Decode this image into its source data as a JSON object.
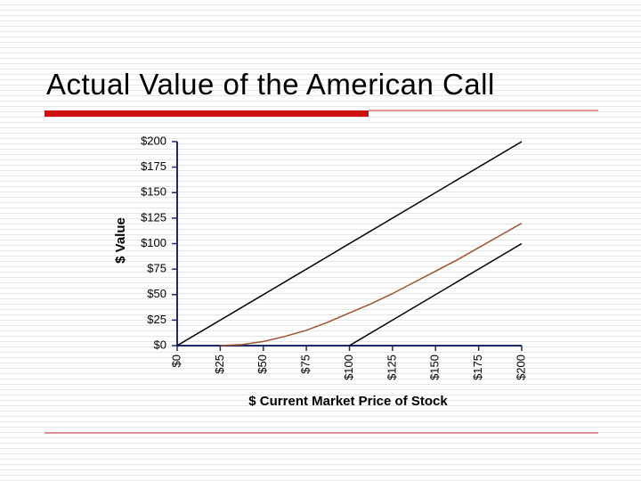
{
  "title": "Actual Value of the American Call",
  "chart_data": {
    "type": "line",
    "xlabel": "$ Current Market Price of Stock",
    "ylabel": "$ Value",
    "xlim": [
      0,
      200
    ],
    "ylim": [
      0,
      200
    ],
    "xticks": [
      {
        "value": 0,
        "label": "$0"
      },
      {
        "value": 25,
        "label": "$25"
      },
      {
        "value": 50,
        "label": "$50"
      },
      {
        "value": 75,
        "label": "$75"
      },
      {
        "value": 100,
        "label": "$100"
      },
      {
        "value": 125,
        "label": "$125"
      },
      {
        "value": 150,
        "label": "$150"
      },
      {
        "value": 175,
        "label": "$175"
      },
      {
        "value": 200,
        "label": "$200"
      }
    ],
    "yticks": [
      {
        "value": 0,
        "label": "$0"
      },
      {
        "value": 25,
        "label": "$25"
      },
      {
        "value": 50,
        "label": "$50"
      },
      {
        "value": 75,
        "label": "$75"
      },
      {
        "value": 100,
        "label": "$100"
      },
      {
        "value": 125,
        "label": "$125"
      },
      {
        "value": 150,
        "label": "$150"
      },
      {
        "value": 175,
        "label": "$175"
      },
      {
        "value": 200,
        "label": "$200"
      }
    ],
    "series": [
      {
        "color": "#000000",
        "x": [
          0,
          200
        ],
        "values": [
          0,
          200
        ]
      },
      {
        "color": "#000000",
        "x": [
          100,
          200
        ],
        "values": [
          0,
          100
        ]
      },
      {
        "color": "#a0522d",
        "x": [
          25,
          37.5,
          50,
          62.5,
          75,
          87.5,
          100,
          112.5,
          125,
          137.5,
          150,
          162.5,
          175,
          187.5,
          200
        ],
        "values": [
          0,
          1,
          4,
          9,
          15,
          23,
          32,
          41,
          51,
          62,
          73,
          84,
          96,
          108,
          120
        ]
      }
    ]
  }
}
